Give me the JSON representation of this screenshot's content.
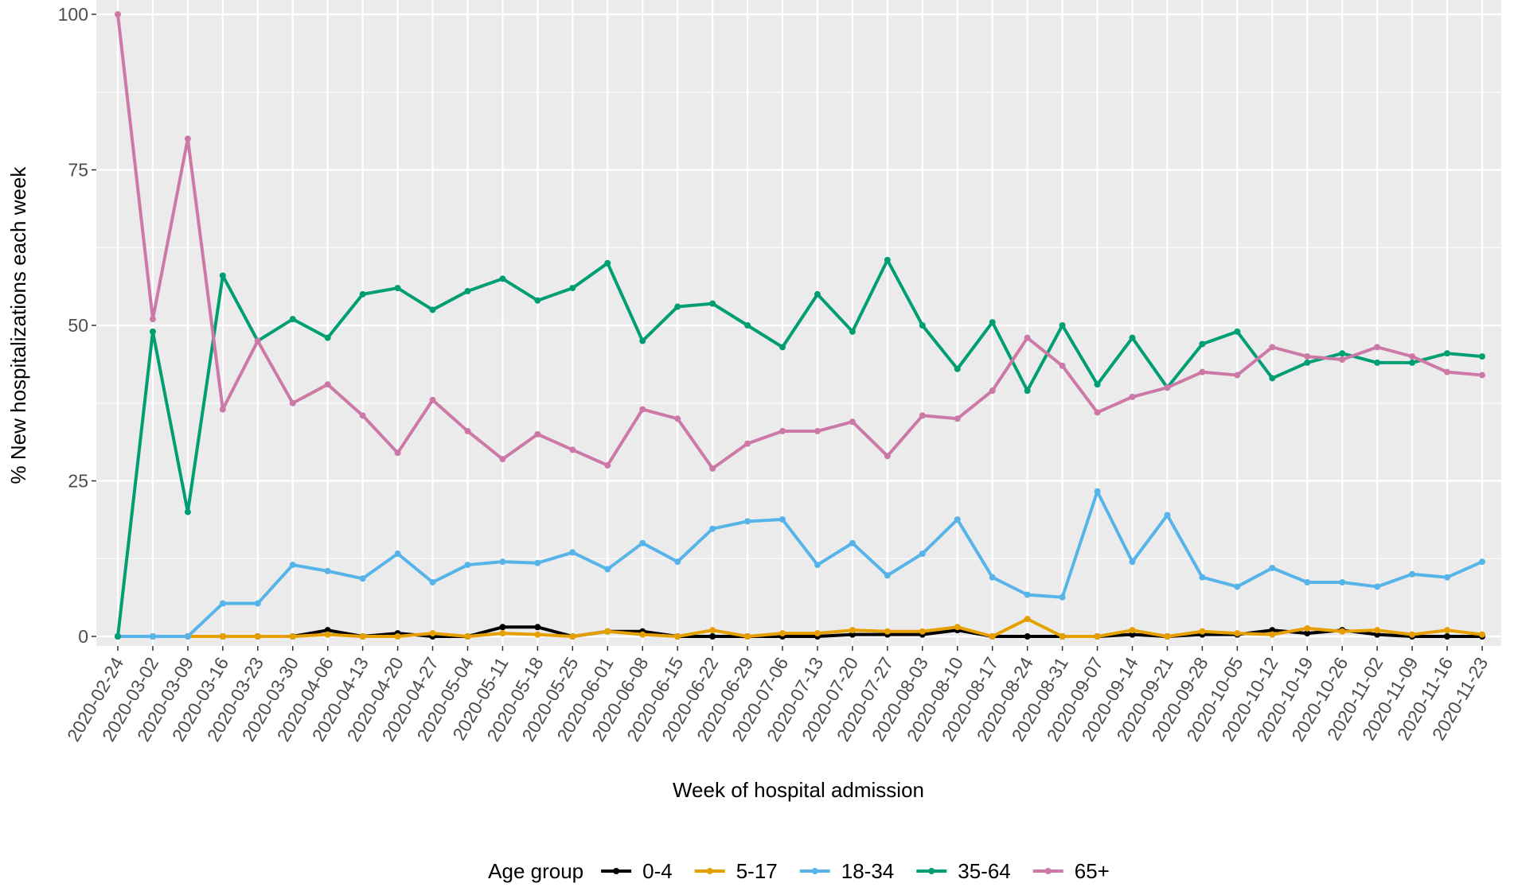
{
  "chart_data": {
    "type": "line",
    "x_label": "Week of hospital admission",
    "y_label": "% New hospitalizations each week",
    "legend_title": "Age group",
    "categories": [
      "2020-02-24",
      "2020-03-02",
      "2020-03-09",
      "2020-03-16",
      "2020-03-23",
      "2020-03-30",
      "2020-04-06",
      "2020-04-13",
      "2020-04-20",
      "2020-04-27",
      "2020-05-04",
      "2020-05-11",
      "2020-05-18",
      "2020-05-25",
      "2020-06-01",
      "2020-06-08",
      "2020-06-15",
      "2020-06-22",
      "2020-06-29",
      "2020-07-06",
      "2020-07-13",
      "2020-07-20",
      "2020-07-27",
      "2020-08-03",
      "2020-08-10",
      "2020-08-17",
      "2020-08-24",
      "2020-08-31",
      "2020-09-07",
      "2020-09-14",
      "2020-09-21",
      "2020-09-28",
      "2020-10-05",
      "2020-10-12",
      "2020-10-19",
      "2020-10-26",
      "2020-11-02",
      "2020-11-09",
      "2020-11-16",
      "2020-11-23"
    ],
    "series": [
      {
        "name": "0-4",
        "color": "#000000",
        "values": [
          0,
          0,
          0,
          0,
          0,
          0,
          1,
          0,
          0.5,
          0,
          0,
          1.5,
          1.5,
          0,
          0.8,
          0.8,
          0,
          0,
          0,
          0,
          0,
          0.3,
          0.3,
          0.3,
          1,
          0,
          0,
          0,
          0,
          0.3,
          0,
          0.3,
          0.3,
          1,
          0.5,
          1,
          0.3,
          0,
          0,
          0
        ]
      },
      {
        "name": "5-17",
        "color": "#E69F00",
        "values": [
          0,
          0,
          0,
          0,
          0,
          0,
          0.3,
          0,
          0,
          0.5,
          0,
          0.5,
          0.3,
          0,
          0.8,
          0.3,
          0,
          1,
          0,
          0.5,
          0.5,
          1,
          0.8,
          0.8,
          1.5,
          0,
          2.8,
          0,
          0,
          1,
          0,
          0.8,
          0.5,
          0.3,
          1.3,
          0.8,
          1,
          0.3,
          1,
          0.3
        ]
      },
      {
        "name": "18-34",
        "color": "#56B4E9",
        "values": [
          0,
          0,
          0,
          5.3,
          5.3,
          11.5,
          10.5,
          9.3,
          13.3,
          8.7,
          11.5,
          12,
          11.8,
          13.5,
          10.8,
          15,
          12,
          17.3,
          18.5,
          18.8,
          11.5,
          15,
          9.8,
          13.3,
          18.8,
          9.5,
          6.7,
          6.3,
          23.3,
          12,
          19.5,
          9.5,
          8,
          11,
          8.7,
          8.7,
          8,
          10,
          9.5,
          12
        ]
      },
      {
        "name": "35-64",
        "color": "#009E73",
        "values": [
          0,
          49,
          20,
          58,
          47.5,
          51,
          48,
          55,
          56,
          52.5,
          55.5,
          57.5,
          54,
          56,
          60,
          47.5,
          53,
          53.5,
          50,
          46.5,
          55,
          49,
          60.5,
          50,
          43,
          50.5,
          39.5,
          50,
          40.5,
          48,
          40,
          47,
          49,
          41.5,
          44,
          45.5,
          44,
          44,
          45.5,
          45
        ]
      },
      {
        "name": "65+",
        "color": "#CC79A7",
        "values": [
          100,
          51,
          80,
          36.5,
          47.5,
          37.5,
          40.5,
          35.5,
          29.5,
          38,
          33,
          28.5,
          32.5,
          30,
          27.5,
          36.5,
          35,
          27,
          31,
          33,
          33,
          34.5,
          29,
          35.5,
          35,
          39.5,
          48,
          43.5,
          36,
          38.5,
          40,
          42.5,
          42,
          46.5,
          45,
          44.5,
          46.5,
          45,
          42.5,
          42
        ]
      }
    ],
    "ylim": [
      0,
      100
    ],
    "yticks": [
      0,
      25,
      50,
      75,
      100
    ],
    "grid": true,
    "legend_position": "bottom"
  }
}
